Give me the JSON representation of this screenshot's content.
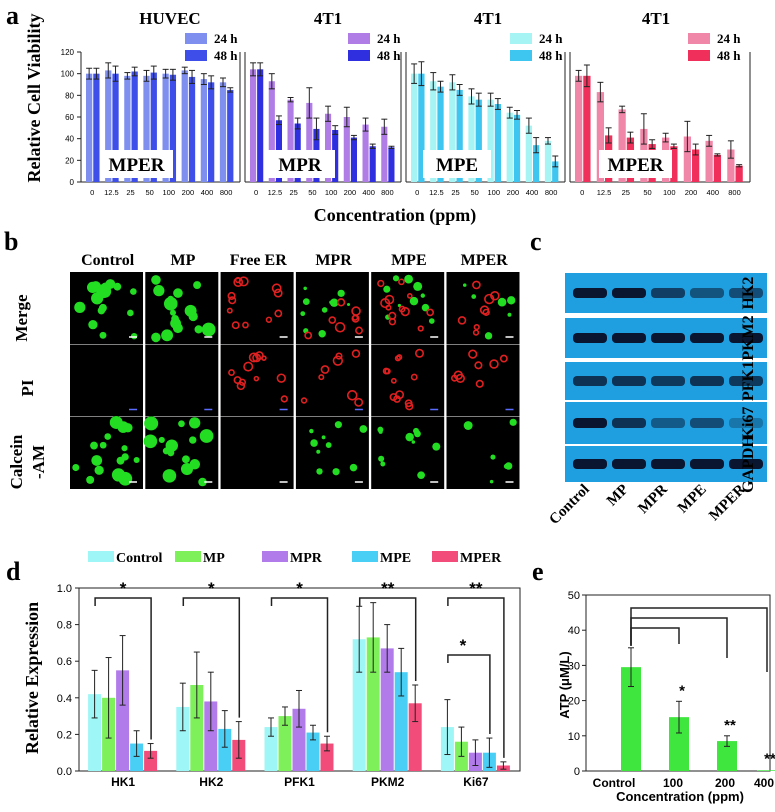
{
  "panel_labels": {
    "a": "a",
    "b": "b",
    "c": "c",
    "d": "d",
    "e": "e"
  },
  "colors": {
    "huvec_24": "#7f8ff0",
    "huvec_48": "#3d4fe8",
    "mpr_24": "#b07ce6",
    "mpr_48": "#2f2fe0",
    "mpe_24": "#a6f4f4",
    "mpe_48": "#3fc6f0",
    "mper_24": "#f087a8",
    "mper_48": "#f0305a",
    "control": "#9ff6f6",
    "mp": "#7ef05a",
    "mpr": "#b27bea",
    "mpe": "#49cff5",
    "mper": "#f24d7a",
    "atp": "#3ee63e",
    "green_cell": "#22dd22",
    "red_cell": "#e02020",
    "blot_bg": "#1f9fe0"
  },
  "panel_b": {
    "columns": [
      "Control",
      "MP",
      "Free ER",
      "MPR",
      "MPE",
      "MPER"
    ],
    "rows": [
      "Merge",
      "PI",
      "Calcein\n-AM"
    ],
    "row_label_1": "Merge",
    "row_label_2": "PI",
    "row_label_3a": "Calcein",
    "row_label_3b": "-AM"
  },
  "panel_c": {
    "proteins": [
      "HK2",
      "PKM2",
      "PFK1",
      "Ki67",
      "GAPDH"
    ],
    "lanes": [
      "Control",
      "MP",
      "MPR",
      "MPE",
      "MPER"
    ]
  },
  "chart_data": [
    {
      "type": "bar",
      "panel": "a",
      "ylabel": "Relative Cell Viability",
      "xlabel": "Concentration (ppm)",
      "ylim": [
        0,
        120
      ],
      "yticks": [
        0,
        20,
        40,
        60,
        80,
        100,
        120
      ],
      "categories": [
        "0",
        "12.5",
        "25",
        "50",
        "100",
        "200",
        "400",
        "800"
      ],
      "groups": [
        {
          "title": "HUVEC",
          "label": "MPER",
          "series": [
            {
              "name": "24 h",
              "values": [
                100,
                103,
                98,
                98,
                100,
                103,
                95,
                92
              ],
              "errors": [
                5,
                7,
                3,
                5,
                4,
                3,
                5,
                4
              ]
            },
            {
              "name": "48 h",
              "values": [
                100,
                100,
                102,
                101,
                99,
                97,
                92,
                85
              ],
              "errors": [
                5,
                7,
                4,
                6,
                5,
                6,
                6,
                2
              ]
            }
          ]
        },
        {
          "title": "4T1",
          "label": "MPR",
          "series": [
            {
              "name": "24 h",
              "values": [
                104,
                93,
                76,
                73,
                63,
                60,
                53,
                51
              ],
              "errors": [
                6,
                7,
                2,
                14,
                7,
                9,
                6,
                7
              ]
            },
            {
              "name": "48 h",
              "values": [
                104,
                57,
                54,
                49,
                48,
                41,
                33,
                32
              ],
              "errors": [
                6,
                4,
                5,
                10,
                4,
                2,
                2,
                1
              ]
            }
          ]
        },
        {
          "title": "4T1",
          "label": "MPE",
          "series": [
            {
              "name": "24 h",
              "values": [
                100,
                93,
                92,
                79,
                76,
                64,
                52,
                38
              ],
              "errors": [
                9,
                8,
                7,
                7,
                6,
                5,
                7,
                3
              ]
            },
            {
              "name": "48 h",
              "values": [
                100,
                88,
                85,
                76,
                72,
                62,
                34,
                19
              ],
              "errors": [
                11,
                5,
                5,
                6,
                5,
                4,
                7,
                5
              ]
            }
          ]
        },
        {
          "title": "4T1",
          "label": "MPER",
          "series": [
            {
              "name": "24 h",
              "values": [
                98,
                83,
                67,
                49,
                41,
                42,
                38,
                30
              ],
              "errors": [
                5,
                9,
                3,
                14,
                4,
                14,
                5,
                8
              ]
            },
            {
              "name": "48 h",
              "values": [
                98,
                43,
                41,
                35,
                33,
                30,
                25,
                15
              ],
              "errors": [
                10,
                7,
                5,
                4,
                2,
                5,
                1,
                1
              ]
            }
          ]
        }
      ]
    },
    {
      "type": "bar",
      "panel": "d",
      "ylabel": "Relative Expression",
      "ylim": [
        0.0,
        1.0
      ],
      "yticks": [
        "0.0",
        "0.2",
        "0.4",
        "0.6",
        "0.8",
        "1.0"
      ],
      "categories": [
        "HK1",
        "HK2",
        "PFK1",
        "PKM2",
        "Ki67"
      ],
      "series": [
        {
          "name": "Control",
          "values": [
            0.42,
            0.35,
            0.24,
            0.72,
            0.24
          ],
          "errors": [
            0.13,
            0.13,
            0.05,
            0.18,
            0.15
          ]
        },
        {
          "name": "MP",
          "values": [
            0.4,
            0.47,
            0.3,
            0.73,
            0.16
          ],
          "errors": [
            0.22,
            0.18,
            0.05,
            0.19,
            0.08
          ]
        },
        {
          "name": "MPR",
          "values": [
            0.55,
            0.38,
            0.34,
            0.67,
            0.1
          ],
          "errors": [
            0.19,
            0.16,
            0.1,
            0.13,
            0.07
          ]
        },
        {
          "name": "MPE",
          "values": [
            0.15,
            0.23,
            0.21,
            0.54,
            0.1
          ],
          "errors": [
            0.07,
            0.1,
            0.04,
            0.13,
            0.08
          ]
        },
        {
          "name": "MPER",
          "values": [
            0.11,
            0.17,
            0.15,
            0.37,
            0.03
          ],
          "errors": [
            0.04,
            0.1,
            0.04,
            0.1,
            0.02
          ]
        }
      ],
      "significance": [
        "*",
        "*",
        "*",
        "**",
        "**"
      ],
      "ki67_extra": "*"
    },
    {
      "type": "bar",
      "panel": "e",
      "ylabel": "ATP (μM/L)",
      "xlabel": "Concentration (ppm)",
      "ylim": [
        0,
        50
      ],
      "yticks": [
        0,
        10,
        20,
        30,
        40,
        50
      ],
      "categories": [
        "Control",
        "100",
        "200",
        "400"
      ],
      "values": [
        29.5,
        15.3,
        8.5,
        0.2
      ],
      "errors": [
        5.5,
        4.5,
        1.5,
        0.2
      ],
      "significance": [
        "",
        "*",
        "**",
        "**"
      ]
    }
  ]
}
